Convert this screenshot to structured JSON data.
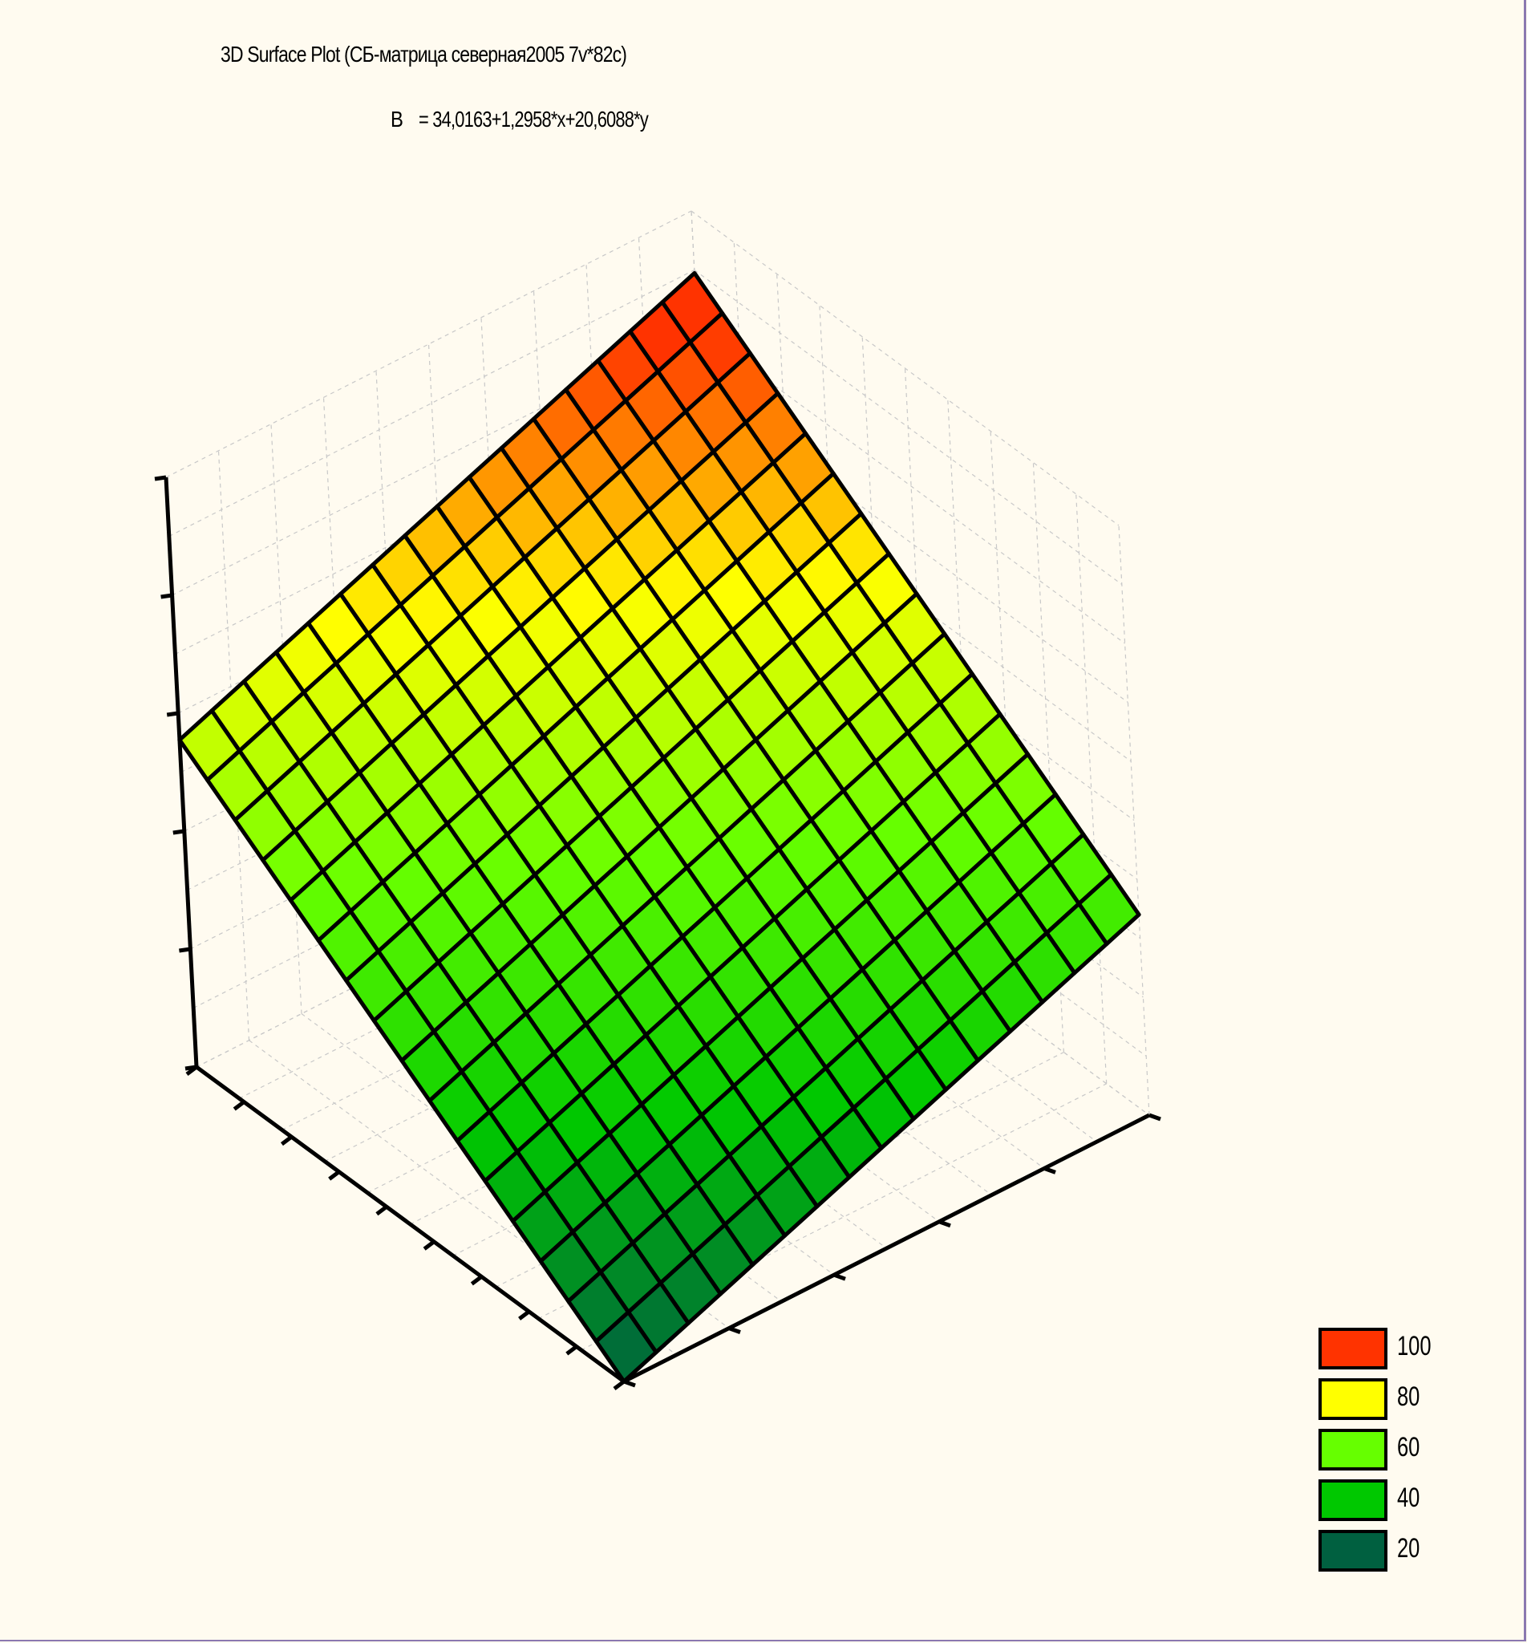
{
  "title": "3D Surface Plot (СБ-матрица северная2005 7v*82c)",
  "equation": {
    "variable": "B",
    "formula": "= 34,0163+1,2958*x+20,6088*y"
  },
  "chart_data": {
    "type": "surface3d",
    "title": "3D Surface Plot (СБ-матрица северная2005 7v*82c)",
    "subtitle": "B   = 34,0163+1,2958*x+20,6088*y",
    "model": {
      "intercept": 34.0163,
      "coef_x": 1.2958,
      "coef_y": 20.6088
    },
    "grid_lines_per_side": 17,
    "legend": {
      "placement": "bottom-right",
      "entries": [
        {
          "label": "100",
          "color": "#ff3300"
        },
        {
          "label": "80",
          "color": "#ffff00"
        },
        {
          "label": "60",
          "color": "#66ff00"
        },
        {
          "label": "40",
          "color": "#00c800"
        },
        {
          "label": "20",
          "color": "#006040"
        }
      ]
    },
    "color_scale": [
      {
        "value": 20,
        "color": "#006040"
      },
      {
        "value": 40,
        "color": "#00c800"
      },
      {
        "value": 60,
        "color": "#66ff00"
      },
      {
        "value": 80,
        "color": "#ffff00"
      },
      {
        "value": 100,
        "color": "#ff3300"
      }
    ],
    "surface_range": [
      20,
      105
    ],
    "z_tick_count": 5,
    "grid": true
  },
  "colors": {
    "background": "#fffbf0",
    "axis": "#000000",
    "grid": "#c8c8c8",
    "mesh": "#000000",
    "frame": "#8a78b0"
  }
}
